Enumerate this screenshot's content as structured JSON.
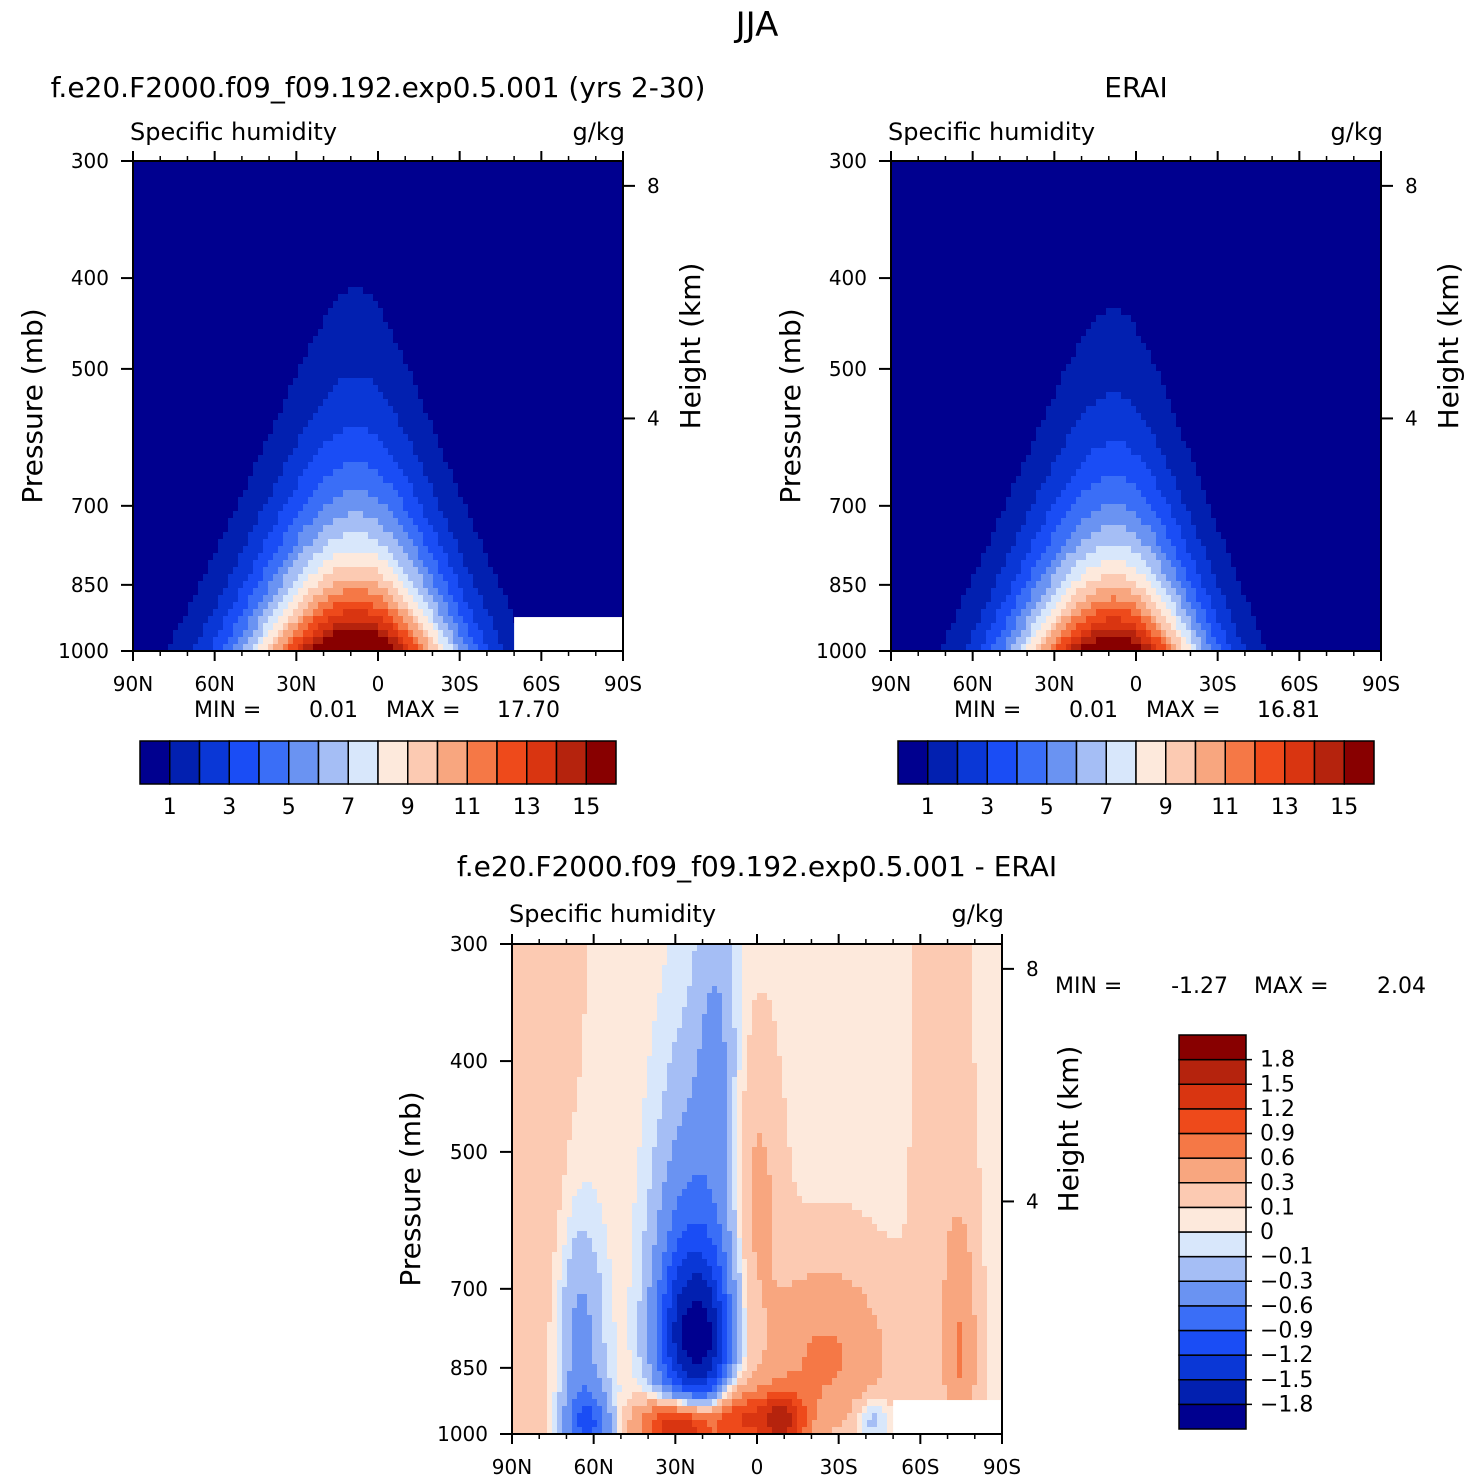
{
  "figure": {
    "title": "JJA"
  },
  "colors": {
    "full": [
      "#00008f",
      "#0220b0",
      "#0a37d6",
      "#1a4df5",
      "#3a6ef7",
      "#6a93f2",
      "#a5bef5",
      "#d8e7fb",
      "#fde9dc",
      "#fccab2",
      "#f8a67f",
      "#f57846",
      "#ee4a1b",
      "#d93511",
      "#b5230d",
      "#880000"
    ],
    "diff": [
      "#00008f",
      "#0220b0",
      "#0a37d6",
      "#1a4df5",
      "#3a6ef7",
      "#6a93f2",
      "#a5bef5",
      "#d8e7fb",
      "#fde9dc",
      "#fccab2",
      "#f8a67f",
      "#f57846",
      "#ee4a1b",
      "#d93511",
      "#b5230d",
      "#880000"
    ]
  },
  "chart_data": [
    {
      "type": "heatmap",
      "title": "f.e20.F2000.f09_f09.192.exp0.5.001 (yrs 2-30)",
      "subtitle": "Specific humidity",
      "units": "g/kg",
      "xlabel": "",
      "ylabel": "Pressure (mb)",
      "ylabel_right": "Height (km)",
      "x_ticks": [
        "90N",
        "60N",
        "30N",
        "0",
        "30S",
        "60S",
        "90S"
      ],
      "y_ticks": [
        "300",
        "400",
        "500",
        "700",
        "850",
        "1000"
      ],
      "y_ticks_right": [
        "8",
        "4"
      ],
      "xlim": [
        90,
        -90
      ],
      "ylim": [
        1000,
        300
      ],
      "min_label": "MIN =",
      "min_value": "0.01",
      "max_label": "MAX =",
      "max_value": "17.70",
      "colorbar_labels": [
        "1",
        "3",
        "5",
        "7",
        "9",
        "11",
        "13",
        "15"
      ],
      "field": {
        "peak": 17.7,
        "center_lat": 8,
        "surface_spread": 28,
        "upper_spread": 13,
        "scale_height": 2.3,
        "offset": 0.2,
        "south_skew": 1.1
      }
    },
    {
      "type": "heatmap",
      "title": "ERAI",
      "subtitle": "Specific humidity",
      "units": "g/kg",
      "xlabel": "",
      "ylabel": "Pressure (mb)",
      "ylabel_right": "Height (km)",
      "x_ticks": [
        "90N",
        "60N",
        "30N",
        "0",
        "30S",
        "60S",
        "90S"
      ],
      "y_ticks": [
        "300",
        "400",
        "500",
        "700",
        "850",
        "1000"
      ],
      "y_ticks_right": [
        "8",
        "4"
      ],
      "xlim": [
        90,
        -90
      ],
      "ylim": [
        1000,
        300
      ],
      "min_label": "MIN =",
      "min_value": "0.01",
      "max_label": "MAX =",
      "max_value": "16.81",
      "colorbar_labels": [
        "1",
        "3",
        "5",
        "7",
        "9",
        "11",
        "13",
        "15"
      ],
      "field": {
        "peak": 16.8,
        "center_lat": 8,
        "surface_spread": 26,
        "upper_spread": 13,
        "scale_height": 2.2,
        "offset": 0.2,
        "south_skew": 1.15
      }
    },
    {
      "type": "heatmap",
      "title": "f.e20.F2000.f09_f09.192.exp0.5.001 - ERAI",
      "subtitle": "Specific humidity",
      "units": "g/kg",
      "xlabel": "",
      "ylabel": "Pressure (mb)",
      "ylabel_right": "Height (km)",
      "x_ticks": [
        "90N",
        "60N",
        "30N",
        "0",
        "30S",
        "60S",
        "90S"
      ],
      "y_ticks": [
        "300",
        "400",
        "500",
        "700",
        "850",
        "1000"
      ],
      "y_ticks_right": [
        "8",
        "4"
      ],
      "xlim": [
        90,
        -90
      ],
      "ylim": [
        1000,
        300
      ],
      "min_label": "MIN =",
      "min_value": "-1.27",
      "max_label": "MAX =",
      "max_value": "2.04",
      "colorbar_levels": [
        "-1.8",
        "-1.5",
        "-1.2",
        "-0.9",
        "-0.6",
        "-0.3",
        "-0.1",
        "0",
        "0.1",
        "0.3",
        "0.6",
        "0.9",
        "1.2",
        "1.5",
        "1.8"
      ],
      "anomalies": [
        {
          "lat": 28,
          "p": 800,
          "amp": -1.3,
          "wlat": 7,
          "wp": 120
        },
        {
          "lat": 17,
          "p": 800,
          "amp": -1.2,
          "wlat": 6,
          "wp": 110
        },
        {
          "lat": 22,
          "p": 620,
          "amp": -0.6,
          "wlat": 10,
          "wp": 160
        },
        {
          "lat": 15,
          "p": 380,
          "amp": -0.3,
          "wlat": 5,
          "wp": 90
        },
        {
          "lat": 28,
          "p": 980,
          "amp": 1.9,
          "wlat": 10,
          "wp": 45
        },
        {
          "lat": -8,
          "p": 970,
          "amp": 1.5,
          "wlat": 7,
          "wp": 50
        },
        {
          "lat": 8,
          "p": 960,
          "amp": 0.9,
          "wlat": 6,
          "wp": 50
        },
        {
          "lat": -25,
          "p": 830,
          "amp": 0.6,
          "wlat": 16,
          "wp": 120
        },
        {
          "lat": 0,
          "p": 560,
          "amp": 0.35,
          "wlat": 6,
          "wp": 120
        },
        {
          "lat": -75,
          "p": 820,
          "amp": 0.5,
          "wlat": 4,
          "wp": 150
        },
        {
          "lat": 65,
          "p": 800,
          "amp": -0.5,
          "wlat": 6,
          "wp": 150
        },
        {
          "lat": 62,
          "p": 980,
          "amp": -0.9,
          "wlat": 6,
          "wp": 60
        },
        {
          "lat": -42,
          "p": 965,
          "amp": -0.35,
          "wlat": 5,
          "wp": 40
        },
        {
          "lat": 80,
          "p": 500,
          "amp": 0.15,
          "wlat": 12,
          "wp": 700
        },
        {
          "lat": -68,
          "p": 560,
          "amp": 0.15,
          "wlat": 8,
          "wp": 350
        }
      ],
      "base": 0.05
    }
  ]
}
